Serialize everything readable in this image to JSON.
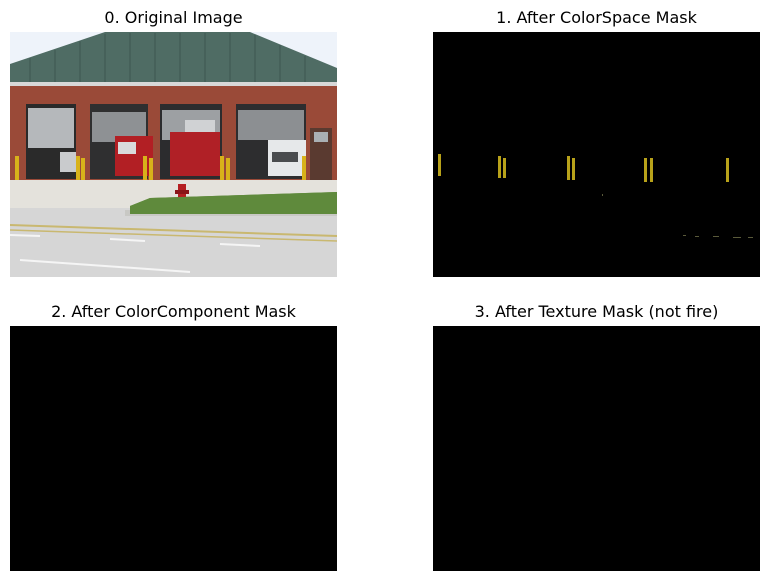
{
  "panels": [
    {
      "title": "0. Original Image"
    },
    {
      "title": "1. After ColorSpace Mask"
    },
    {
      "title": "2. After ColorComponent Mask"
    },
    {
      "title": "3. After Texture Mask (not fire)"
    }
  ],
  "colors": {
    "mask_background": "#000000",
    "highlight_yellow": "#b8a21a",
    "brick": "#9a4a38",
    "roof": "#4d6a62",
    "sky": "#eef3fa",
    "pavement": "#d9d9d9",
    "grass": "#5f8a3c"
  }
}
